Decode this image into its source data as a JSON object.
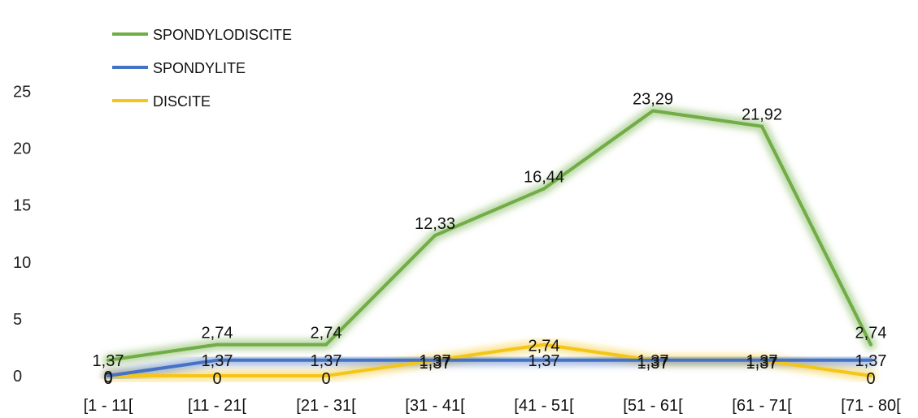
{
  "chart_data": {
    "type": "line",
    "categories": [
      "[1 - 11[",
      "[11 - 21[",
      "[21 - 31[",
      "[31 - 41[",
      "[41 - 51[",
      "[51 - 61[",
      "[61 - 71[",
      "[71 - 80["
    ],
    "ylim": [
      0,
      25
    ],
    "yticks": [
      "0",
      "5",
      "10",
      "15",
      "20",
      "25"
    ],
    "grid": false,
    "legend_position": "top-left",
    "series": [
      {
        "name": "SPONDYLODISCITE",
        "color": "#70ad47",
        "values": [
          1.37,
          2.74,
          2.74,
          12.33,
          16.44,
          23.29,
          21.92,
          2.74
        ],
        "labels": [
          "1,37",
          "2,74",
          "2,74",
          "12,33",
          "16,44",
          "23,29",
          "21,92",
          "2,74"
        ]
      },
      {
        "name": "SPONDYLITE",
        "color": "#4472c4",
        "values": [
          0,
          1.37,
          1.37,
          1.37,
          1.37,
          1.37,
          1.37,
          1.37
        ],
        "labels": [
          "0",
          "1,37",
          "1,37",
          "1,37",
          "1,37",
          "1,37",
          "1,37",
          "1,37"
        ]
      },
      {
        "name": "DISCITE",
        "color": "#f5c518",
        "values": [
          0,
          0,
          0,
          1.37,
          2.74,
          1.37,
          1.37,
          0
        ],
        "labels": [
          "0",
          "0",
          "0",
          "1,37",
          "2,74",
          "1,37",
          "1,37",
          "0"
        ]
      }
    ]
  }
}
